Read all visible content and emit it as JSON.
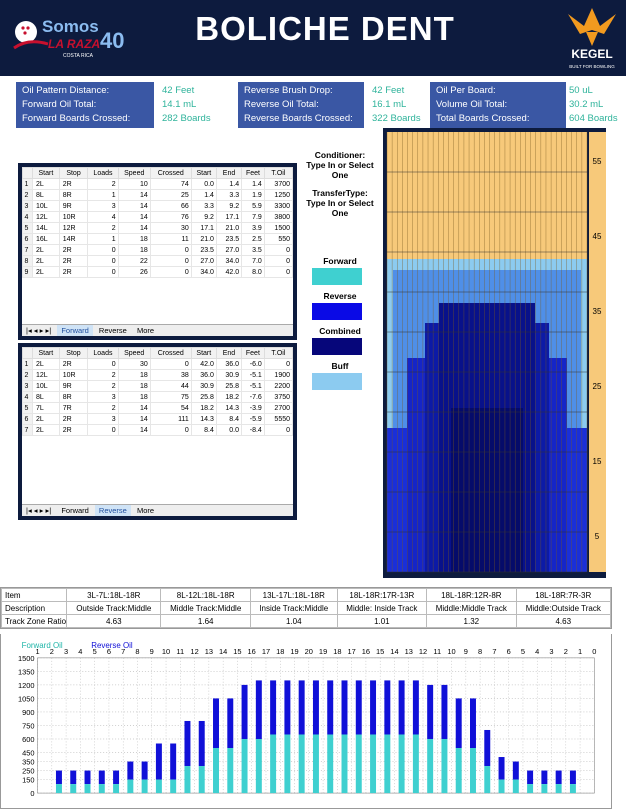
{
  "header": {
    "title": "BOLICHE DENT",
    "logo_left_text": "Somos",
    "logo_left_sub": "LA RAZA",
    "logo_left_number": "40",
    "logo_left_country": "COSTA RICA",
    "logo_right_text": "KEGEL",
    "logo_right_sub": "BUILT FOR BOWLING"
  },
  "stats": {
    "block1": {
      "labels": [
        "Oil Pattern Distance:",
        "Forward Oil Total:",
        "Forward Boards Crossed:"
      ],
      "values": [
        "42 Feet",
        "14.1 mL",
        "282 Boards"
      ]
    },
    "block2": {
      "labels": [
        "Reverse Brush Drop:",
        "Reverse Oil Total:",
        "Reverse Boards Crossed:"
      ],
      "values": [
        "42 Feet",
        "16.1 mL",
        "322 Boards"
      ]
    },
    "block3": {
      "labels": [
        "Oil Per Board:",
        "Volume Oil Total:",
        "Total Boards Crossed:"
      ],
      "values": [
        "50 uL",
        "30.2 mL",
        "604 Boards"
      ]
    }
  },
  "forward_table": {
    "headers": [
      "",
      "Start",
      "Stop",
      "Loads",
      "Speed",
      "Crossed",
      "Start",
      "End",
      "Feet",
      "T.Oil"
    ],
    "rows": [
      [
        "1",
        "2L",
        "2R",
        "2",
        "10",
        "74",
        "0.0",
        "1.4",
        "1.4",
        "3700"
      ],
      [
        "2",
        "8L",
        "8R",
        "1",
        "14",
        "25",
        "1.4",
        "3.3",
        "1.9",
        "1250"
      ],
      [
        "3",
        "10L",
        "9R",
        "3",
        "14",
        "66",
        "3.3",
        "9.2",
        "5.9",
        "3300"
      ],
      [
        "4",
        "12L",
        "10R",
        "4",
        "14",
        "76",
        "9.2",
        "17.1",
        "7.9",
        "3800"
      ],
      [
        "5",
        "14L",
        "12R",
        "2",
        "14",
        "30",
        "17.1",
        "21.0",
        "3.9",
        "1500"
      ],
      [
        "6",
        "16L",
        "14R",
        "1",
        "18",
        "11",
        "21.0",
        "23.5",
        "2.5",
        "550"
      ],
      [
        "7",
        "2L",
        "2R",
        "0",
        "18",
        "0",
        "23.5",
        "27.0",
        "3.5",
        "0"
      ],
      [
        "8",
        "2L",
        "2R",
        "0",
        "22",
        "0",
        "27.0",
        "34.0",
        "7.0",
        "0"
      ],
      [
        "9",
        "2L",
        "2R",
        "0",
        "26",
        "0",
        "34.0",
        "42.0",
        "8.0",
        "0"
      ]
    ],
    "tabs": [
      "Forward",
      "Reverse",
      "More"
    ]
  },
  "reverse_table": {
    "headers": [
      "",
      "Start",
      "Stop",
      "Loads",
      "Speed",
      "Crossed",
      "Start",
      "End",
      "Feet",
      "T.Oil"
    ],
    "rows": [
      [
        "1",
        "2L",
        "2R",
        "0",
        "30",
        "0",
        "42.0",
        "36.0",
        "-6.0",
        "0"
      ],
      [
        "2",
        "12L",
        "10R",
        "2",
        "18",
        "38",
        "36.0",
        "30.9",
        "-5.1",
        "1900"
      ],
      [
        "3",
        "10L",
        "9R",
        "2",
        "18",
        "44",
        "30.9",
        "25.8",
        "-5.1",
        "2200"
      ],
      [
        "4",
        "8L",
        "8R",
        "3",
        "18",
        "75",
        "25.8",
        "18.2",
        "-7.6",
        "3750"
      ],
      [
        "5",
        "7L",
        "7R",
        "2",
        "14",
        "54",
        "18.2",
        "14.3",
        "-3.9",
        "2700"
      ],
      [
        "6",
        "2L",
        "2R",
        "3",
        "14",
        "111",
        "14.3",
        "8.4",
        "-5.9",
        "5550"
      ],
      [
        "7",
        "2L",
        "2R",
        "0",
        "14",
        "0",
        "8.4",
        "0.0",
        "-8.4",
        "0"
      ]
    ],
    "tabs": [
      "Forward",
      "Reverse",
      "More"
    ]
  },
  "legend": {
    "conditioner": "Conditioner: Type In or Select One",
    "transfer": "TransferType: Type In or Select One",
    "forward": "Forward",
    "reverse": "Reverse",
    "combined": "Combined",
    "buff": "Buff",
    "colors": {
      "forward": "#3fd0d0",
      "reverse": "#0a0ae6",
      "combined": "#06067a",
      "buff": "#8ccbf0"
    }
  },
  "lane": {
    "distance_labels": [
      "55",
      "45",
      "35",
      "25",
      "15",
      "5"
    ]
  },
  "track": {
    "headers": [
      "Item",
      "3L-7L:18L-18R",
      "8L-12L:18L-18R",
      "13L-17L:18L-18R",
      "18L-18R:17R-13R",
      "18L-18R:12R-8R",
      "18L-18R:7R-3R"
    ],
    "description": [
      "Description",
      "Outside Track:Middle",
      "Middle Track:Middle",
      "Inside Track:Middle",
      "Middle: Inside Track",
      "Middle:Middle Track",
      "Middle:Outside Track"
    ],
    "ratio": [
      "Track Zone Ratio",
      "4.63",
      "1.64",
      "1.04",
      "1.01",
      "1.32",
      "4.63"
    ]
  },
  "chart_data": {
    "type": "bar",
    "legend": [
      "Forward Oil",
      "Reverse Oil"
    ],
    "categories": [
      "2",
      "3",
      "4",
      "5",
      "6",
      "7",
      "8",
      "9",
      "10",
      "11",
      "12",
      "13",
      "14",
      "15",
      "16",
      "17",
      "18",
      "19",
      "20",
      "19",
      "18",
      "17",
      "16",
      "15",
      "14",
      "13",
      "12",
      "11",
      "10",
      "9",
      "8",
      "7",
      "6",
      "5",
      "4",
      "3",
      "2"
    ],
    "top_ticks": [
      "1",
      "2",
      "3",
      "4",
      "5",
      "6",
      "7",
      "8",
      "9",
      "10",
      "11",
      "12",
      "13",
      "14",
      "15",
      "16",
      "17",
      "18",
      "19",
      "20",
      "19",
      "18",
      "17",
      "16",
      "15",
      "14",
      "13",
      "12",
      "11",
      "10",
      "9",
      "8",
      "7",
      "6",
      "5",
      "4",
      "3",
      "2",
      "1",
      "0"
    ],
    "series": [
      {
        "name": "Forward Oil",
        "values": [
          100,
          100,
          100,
          100,
          100,
          150,
          150,
          150,
          150,
          300,
          300,
          500,
          500,
          600,
          600,
          650,
          650,
          650,
          650,
          650,
          650,
          650,
          650,
          650,
          650,
          650,
          600,
          600,
          500,
          500,
          300,
          150,
          150,
          100,
          100,
          100,
          100
        ]
      },
      {
        "name": "Reverse Oil",
        "values": [
          150,
          150,
          150,
          150,
          150,
          200,
          200,
          400,
          400,
          500,
          500,
          550,
          550,
          600,
          650,
          600,
          600,
          600,
          600,
          600,
          600,
          600,
          600,
          600,
          600,
          600,
          600,
          600,
          550,
          550,
          400,
          250,
          200,
          150,
          150,
          150,
          150
        ]
      }
    ],
    "ylim": [
      0,
      1500
    ],
    "yticks": [
      0,
      150,
      250,
      350,
      450,
      600,
      750,
      900,
      1050,
      1200,
      1350,
      1500
    ],
    "colors": {
      "forward": "#3fd0d0",
      "reverse": "#1010d8"
    }
  }
}
